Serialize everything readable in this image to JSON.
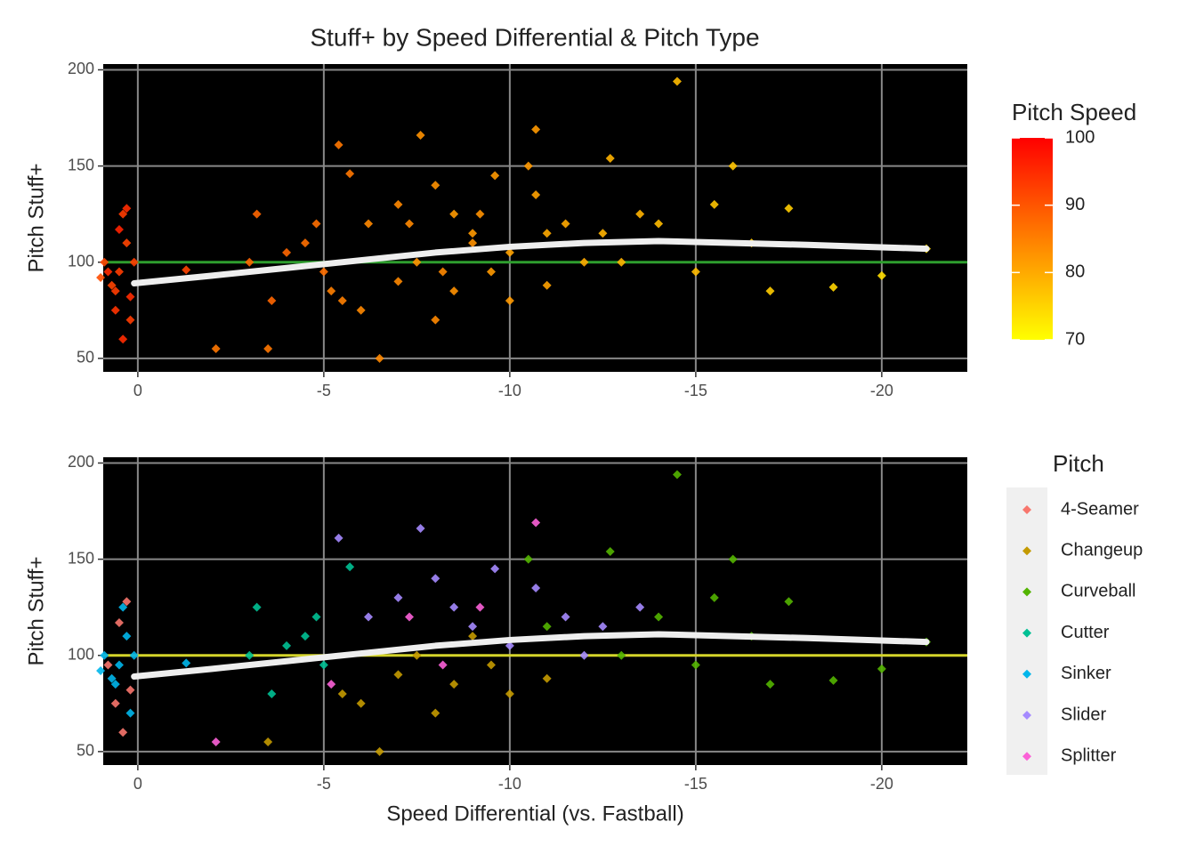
{
  "chart_data": [
    {
      "type": "scatter",
      "title": "Stuff+ by Speed Differential & Pitch Type",
      "ylabel": "Pitch Stuff+",
      "xlim": [
        0.93,
        -22.3
      ],
      "xticks": [
        0,
        -5,
        -10,
        -15,
        -20
      ],
      "ylim": [
        43,
        203
      ],
      "yticks": [
        50,
        100,
        150,
        200
      ],
      "hline": 100,
      "hline_color": "#2e9e2e",
      "grid": true,
      "x": [
        0.3,
        0.5,
        0.2,
        0.6,
        0.4,
        0.8,
        0.1,
        0.3,
        0.5,
        0.7,
        0.2,
        0.9,
        1,
        0.4,
        -1.3,
        0.6,
        -3.2,
        -4,
        -4.5,
        -5,
        -3.6,
        -4.8,
        -5.7,
        -3,
        -5.5,
        -6.5,
        -7,
        -7.5,
        -8,
        -8.5,
        -9,
        -9.5,
        -10,
        -6,
        -3.5,
        -11,
        -5.4,
        -6.2,
        -7,
        -7.6,
        -8,
        -8.5,
        -9,
        -9.6,
        -10,
        -10.7,
        -11.5,
        -12,
        -12.5,
        -13.5,
        -10.5,
        -11,
        -12.7,
        -13,
        -14,
        -14.5,
        -15,
        -15.5,
        -16,
        -16.5,
        -17,
        -17.5,
        -18.7,
        -20,
        -21.2,
        -2.1,
        -5.2,
        -7.3,
        -8.2,
        -10.7,
        -9.2
      ],
      "y": [
        128,
        117,
        82,
        75,
        60,
        95,
        100,
        110,
        95,
        88,
        70,
        100,
        92,
        125,
        96,
        85,
        125,
        105,
        110,
        95,
        80,
        120,
        146,
        100,
        80,
        50,
        90,
        100,
        70,
        85,
        110,
        95,
        80,
        75,
        55,
        88,
        161,
        120,
        130,
        166,
        140,
        125,
        115,
        145,
        105,
        135,
        120,
        100,
        115,
        125,
        150,
        115,
        154,
        100,
        120,
        194,
        95,
        130,
        150,
        110,
        85,
        128,
        87,
        93,
        107,
        55,
        85,
        120,
        95,
        169,
        125
      ],
      "speed": [
        95,
        96,
        95,
        94,
        95,
        95,
        93,
        92,
        93,
        92,
        93,
        92,
        91,
        93,
        92,
        93,
        88,
        88,
        87,
        87,
        88,
        87,
        86,
        88,
        85,
        84,
        84,
        83,
        84,
        83,
        83,
        82,
        82,
        84,
        86,
        81,
        86,
        84,
        84,
        83,
        83,
        82,
        82,
        82,
        81,
        81,
        80,
        80,
        79,
        79,
        82,
        80,
        79,
        79,
        78,
        78,
        78,
        77,
        77,
        76,
        76,
        76,
        75,
        74,
        74,
        86,
        85,
        84,
        84,
        82,
        83
      ],
      "trend": {
        "x": [
          0.1,
          -2,
          -4,
          -6,
          -8,
          -10,
          -12,
          -14,
          -16,
          -18,
          -21.2
        ],
        "y": [
          89,
          93,
          97,
          101,
          105,
          108,
          110,
          111,
          110,
          109,
          107
        ],
        "color": "#eeeeee"
      },
      "color_scale": {
        "name": "Pitch Speed",
        "limits": [
          70,
          100
        ],
        "ticks": [
          70,
          80,
          90,
          100
        ],
        "colors": [
          "#ffff00",
          "#ff0000"
        ]
      }
    },
    {
      "type": "scatter",
      "ylabel": "Pitch Stuff+",
      "xlabel": "Speed Differential (vs. Fastball)",
      "xlim": [
        0.93,
        -22.3
      ],
      "xticks": [
        0,
        -5,
        -10,
        -15,
        -20
      ],
      "ylim": [
        43,
        203
      ],
      "yticks": [
        50,
        100,
        150,
        200
      ],
      "hline": 100,
      "hline_color": "#d4d42a",
      "grid": true,
      "legend_title": "Pitch",
      "series": [
        {
          "name": "4-Seamer",
          "color": "#F8766D",
          "x": [
            0.3,
            0.5,
            0.2,
            0.6,
            0.4,
            0.8
          ],
          "values": [
            128,
            117,
            82,
            75,
            60,
            95
          ]
        },
        {
          "name": "Changeup",
          "color": "#C49A00",
          "x": [
            -5.5,
            -6.5,
            -7,
            -7.5,
            -8,
            -8.5,
            -9,
            -9.5,
            -10,
            -6,
            -3.5,
            -11
          ],
          "values": [
            80,
            50,
            90,
            100,
            70,
            85,
            110,
            95,
            80,
            75,
            55,
            88
          ]
        },
        {
          "name": "Curveball",
          "color": "#53B400",
          "x": [
            -10.5,
            -11,
            -12.7,
            -13,
            -14,
            -14.5,
            -15,
            -15.5,
            -16,
            -16.5,
            -17,
            -17.5,
            -18.7,
            -20,
            -21.2
          ],
          "values": [
            150,
            115,
            154,
            100,
            120,
            194,
            95,
            130,
            150,
            110,
            85,
            128,
            87,
            93,
            107
          ]
        },
        {
          "name": "Cutter",
          "color": "#00C094",
          "x": [
            -3.2,
            -4,
            -4.5,
            -5,
            -3.6,
            -4.8,
            -5.7,
            -3
          ],
          "values": [
            125,
            105,
            110,
            95,
            80,
            120,
            146,
            100
          ]
        },
        {
          "name": "Sinker",
          "color": "#00B6EB",
          "x": [
            0.1,
            0.3,
            0.5,
            0.7,
            0.2,
            0.9,
            1,
            0.4,
            -1.3,
            0.6
          ],
          "values": [
            100,
            110,
            95,
            88,
            70,
            100,
            92,
            125,
            96,
            85
          ]
        },
        {
          "name": "Slider",
          "color": "#A58AFF",
          "x": [
            -5.4,
            -6.2,
            -7,
            -7.6,
            -8,
            -8.5,
            -9,
            -9.6,
            -10,
            -10.7,
            -11.5,
            -12,
            -12.5,
            -13.5
          ],
          "values": [
            161,
            120,
            130,
            166,
            140,
            125,
            115,
            145,
            105,
            135,
            120,
            100,
            115,
            125
          ]
        },
        {
          "name": "Splitter",
          "color": "#FB61D7",
          "x": [
            -2.1,
            -5.2,
            -7.3,
            -8.2,
            -10.7,
            -9.2
          ],
          "values": [
            55,
            85,
            120,
            95,
            169,
            125
          ]
        }
      ],
      "trend": {
        "x": [
          0.1,
          -2,
          -4,
          -6,
          -8,
          -10,
          -12,
          -14,
          -16,
          -18,
          -21.2
        ],
        "y": [
          89,
          93,
          97,
          101,
          105,
          108,
          110,
          111,
          110,
          109,
          107
        ],
        "color": "#eeeeee"
      }
    }
  ]
}
